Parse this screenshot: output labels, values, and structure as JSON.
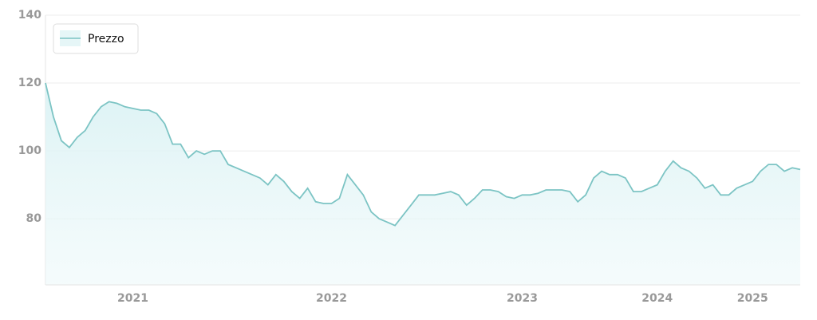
{
  "chart_data": {
    "type": "line",
    "categories": [
      null,
      null,
      null,
      null,
      null,
      null,
      null,
      null,
      null,
      null,
      null,
      "2021",
      null,
      null,
      null,
      null,
      null,
      null,
      null,
      null,
      null,
      null,
      null,
      null,
      null,
      null,
      null,
      null,
      null,
      null,
      null,
      null,
      null,
      null,
      null,
      null,
      "2022",
      null,
      null,
      null,
      null,
      null,
      null,
      null,
      null,
      null,
      null,
      null,
      null,
      null,
      null,
      null,
      null,
      null,
      null,
      null,
      null,
      null,
      null,
      null,
      "2023",
      null,
      null,
      null,
      null,
      null,
      null,
      null,
      null,
      null,
      null,
      null,
      null,
      null,
      null,
      null,
      null,
      "2024",
      null,
      null,
      null,
      null,
      null,
      null,
      null,
      null,
      null,
      null,
      null,
      "2025",
      null,
      null,
      null,
      null,
      null,
      null
    ],
    "series": [
      {
        "name": "Prezzo",
        "color": "#7cc4c4",
        "values": [
          120,
          110,
          103,
          101,
          104,
          106,
          110,
          113,
          114.5,
          114,
          113,
          112.5,
          112,
          112,
          111,
          108,
          102,
          102,
          98,
          100,
          99,
          100,
          100,
          96,
          95,
          94,
          93,
          92,
          90,
          93,
          91,
          88,
          86,
          89,
          85,
          84.5,
          84.5,
          86,
          93,
          90,
          87,
          82,
          80,
          79,
          78,
          81,
          84,
          87,
          87,
          87,
          87.5,
          88,
          87,
          84,
          86,
          88.5,
          88.5,
          88,
          86.5,
          86,
          87,
          87,
          87.5,
          88.5,
          88.5,
          88.5,
          88,
          85,
          87,
          92,
          94,
          93,
          93,
          92,
          88,
          88,
          89,
          90,
          94,
          97,
          95,
          94,
          92,
          89,
          90,
          87,
          87,
          89,
          90,
          91,
          94,
          96,
          96,
          94,
          95,
          94.5
        ]
      }
    ],
    "ylim": [
      60.5,
      140
    ],
    "yticks": [
      80,
      100,
      120,
      140
    ],
    "grid": true,
    "legend": "top-left"
  }
}
